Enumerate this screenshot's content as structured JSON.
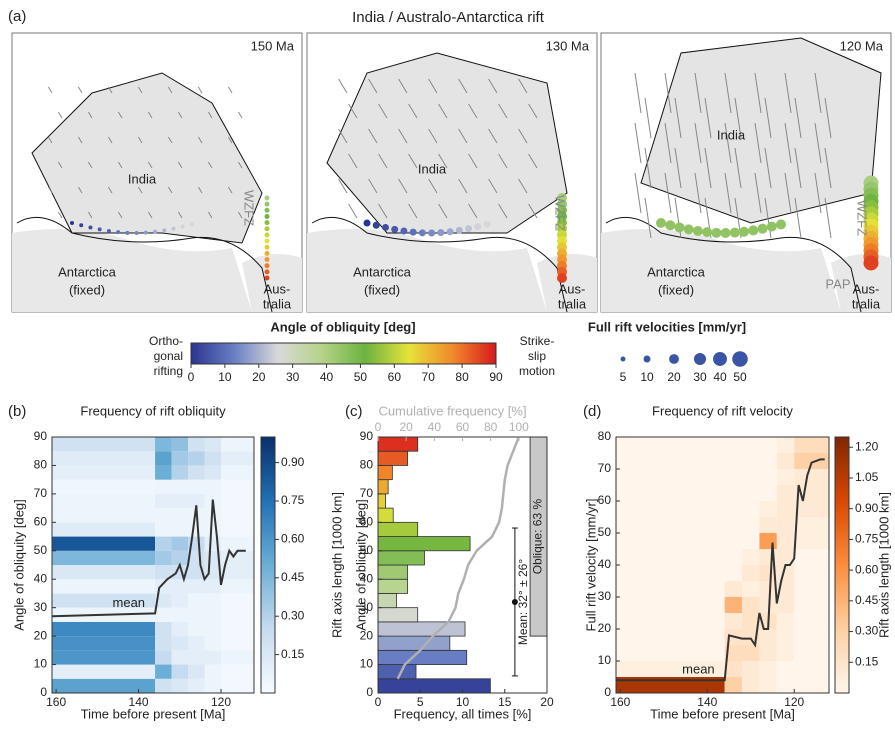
{
  "figure_label": "(a)",
  "title": "India / Australo-Antarctica rift",
  "maps": [
    {
      "age": "150 Ma",
      "india": "India",
      "fault": "WZFZ",
      "antarctica": "Antarctica",
      "fixed": "(fixed)",
      "australia_1": "Aus-",
      "australia_2": "tralia"
    },
    {
      "age": "130 Ma",
      "india": "India",
      "fault": "WZFZ",
      "antarctica": "Antarctica",
      "fixed": "(fixed)",
      "australia_1": "Aus-",
      "australia_2": "tralia"
    },
    {
      "age": "120 Ma",
      "india": "India",
      "fault": "WZFZ",
      "pap": "PAP",
      "antarctica": "Antarctica",
      "fixed": "(fixed)",
      "australia_1": "Aus-",
      "australia_2": "tralia"
    }
  ],
  "legend": {
    "obliquity_title": "Angle of obliquity [deg]",
    "left_label": [
      "Ortho-",
      "gonal",
      "rifting"
    ],
    "right_label": [
      "Strike-",
      "slip",
      "motion"
    ],
    "lim": [
      0,
      90
    ],
    "ticks": [
      0,
      10,
      20,
      30,
      40,
      50,
      60,
      70,
      80,
      90
    ],
    "colors": [
      "#2a3590",
      "#6a7fc4",
      "#d9d9d9",
      "#b5d38a",
      "#6cb33f",
      "#e5e33a",
      "#f08a2a",
      "#d7191c"
    ],
    "velocity_title": "Full rift velocities [mm/yr]",
    "velocity_sizes": [
      5,
      10,
      20,
      30,
      40,
      50
    ],
    "velocity_color": "#3b55a6"
  },
  "chart_data": [
    {
      "type": "heatmap",
      "panel_label": "(b)",
      "title": "Frequency of rift obliquity",
      "x_label": "Time before present [Ma]",
      "y_label": "Angle of obliquity [deg]",
      "xlim": [
        161,
        112
      ],
      "xticks": [
        160,
        140,
        120
      ],
      "ylim": [
        0,
        90
      ],
      "yticks": [
        0,
        10,
        20,
        30,
        40,
        50,
        60,
        70,
        80,
        90
      ],
      "xbins": [
        161,
        136,
        132,
        128,
        124,
        120,
        112
      ],
      "ybins": [
        0,
        5,
        10,
        15,
        20,
        25,
        30,
        35,
        40,
        45,
        50,
        55,
        60,
        65,
        70,
        75,
        80,
        85,
        90
      ],
      "z": [
        [
          0.55,
          0.1,
          0.6,
          0.62,
          0.65,
          0.05,
          0.2,
          0.05,
          0.15,
          0.45,
          0.85,
          0.12,
          0.05,
          0.05,
          0.04,
          0.1,
          0.12,
          0.2
        ],
        [
          0.2,
          0.5,
          0.25,
          0.2,
          0.2,
          0.05,
          0.15,
          0.1,
          0.2,
          0.35,
          0.3,
          0.05,
          0.05,
          0.1,
          0.05,
          0.5,
          0.55,
          0.45
        ],
        [
          0.15,
          0.25,
          0.1,
          0.15,
          0.1,
          0.05,
          0.1,
          0.1,
          0.2,
          0.3,
          0.35,
          0.05,
          0.05,
          0.1,
          0.05,
          0.3,
          0.35,
          0.4
        ],
        [
          0.1,
          0.15,
          0.1,
          0.1,
          0.05,
          0.05,
          0.05,
          0.1,
          0.2,
          0.2,
          0.25,
          0.05,
          0.05,
          0.1,
          0.05,
          0.2,
          0.3,
          0.2
        ],
        [
          0.05,
          0.05,
          0.1,
          0.05,
          0.05,
          0.05,
          0.05,
          0.1,
          0.15,
          0.15,
          0.1,
          0.05,
          0.05,
          0.05,
          0.05,
          0.15,
          0.2,
          0.15
        ],
        [
          0.02,
          0.02,
          0.05,
          0.02,
          0.02,
          0.02,
          0.02,
          0.05,
          0.1,
          0.1,
          0.05,
          0.02,
          0.02,
          0.02,
          0.02,
          0.05,
          0.1,
          0.05
        ]
      ],
      "colorbar": {
        "label": "Rift axis length [1000 km]",
        "lim": [
          0,
          1.0
        ],
        "ticks": [
          0.15,
          {
            "value": 0.3,
            "label": "0.30"
          },
          0.45,
          {
            "value": 0.6,
            "label": "0.60"
          },
          0.75,
          {
            "value": 0.9,
            "label": "0.90"
          }
        ],
        "colors": [
          "#f7fbff",
          "#c6dbef",
          "#6baed6",
          "#2171b5",
          "#08306b"
        ]
      },
      "mean": {
        "name": "mean",
        "color": "#333333",
        "x": [
          161,
          136,
          135,
          133,
          131,
          130,
          129,
          128,
          127,
          126,
          125,
          124,
          123,
          122,
          121,
          120,
          119,
          118,
          117,
          116,
          114
        ],
        "values": [
          27,
          28,
          37,
          40,
          42,
          45,
          40,
          45,
          55,
          66,
          45,
          40,
          42,
          68,
          55,
          38,
          45,
          50,
          48,
          50,
          50
        ]
      }
    },
    {
      "type": "histogram",
      "panel_label": "(c)",
      "x_label": "Frequency, all times [%]",
      "y_label": "Angle of obliquity [deg]",
      "xlim": [
        0,
        20
      ],
      "xticks": [
        0,
        5,
        10,
        15,
        20
      ],
      "ylim": [
        0,
        90
      ],
      "yticks": [
        0,
        10,
        20,
        30,
        40,
        50,
        60,
        70,
        80,
        90
      ],
      "bins": [
        0,
        5,
        10,
        15,
        20,
        25,
        30,
        35,
        40,
        45,
        50,
        55,
        60,
        65,
        70,
        75,
        80,
        85,
        90
      ],
      "values": [
        13.3,
        4.5,
        10.5,
        8.5,
        10.3,
        4.7,
        2.2,
        3.5,
        3.5,
        5.5,
        10.9,
        4.7,
        1.8,
        0.9,
        1.2,
        1.7,
        3.5,
        4.7
      ],
      "cumulative": {
        "title": "Cumulative frequency [%]",
        "color": "#b0b0b0",
        "x2lim": [
          0,
          120
        ],
        "x2ticks": [
          0,
          20,
          40,
          60,
          80,
          100
        ],
        "values": [
          14,
          19,
          30,
          39,
          50,
          55,
          57,
          61,
          64,
          70,
          81,
          86,
          88,
          89,
          90,
          92,
          96,
          100
        ]
      },
      "mean": {
        "value": 32,
        "error": 26,
        "label": "Mean: 32° ± 26°"
      },
      "oblique": {
        "label": "Oblique: 63 %",
        "range": [
          20,
          90
        ]
      }
    },
    {
      "type": "heatmap",
      "panel_label": "(d)",
      "title": "Frequency of rift velocity",
      "x_label": "Time before present [Ma]",
      "y_label": "Full rift velocity [mm/yr]",
      "xlim": [
        161,
        112
      ],
      "xticks": [
        160,
        140,
        120
      ],
      "ylim": [
        0,
        80
      ],
      "yticks": [
        0,
        10,
        20,
        30,
        40,
        50,
        60,
        70,
        80
      ],
      "xbins": [
        161,
        136,
        132,
        128,
        124,
        120,
        112
      ],
      "ybins": [
        0,
        5,
        10,
        15,
        20,
        25,
        30,
        35,
        40,
        45,
        50,
        55,
        60,
        65,
        70,
        75,
        80
      ],
      "z": [
        [
          1.1,
          0.05,
          0,
          0,
          0,
          0,
          0,
          0,
          0,
          0,
          0,
          0,
          0,
          0,
          0,
          0
        ],
        [
          0.3,
          0.15,
          0.2,
          0.15,
          0.1,
          0.45,
          0.1,
          0,
          0,
          0,
          0,
          0,
          0,
          0,
          0,
          0
        ],
        [
          0.1,
          0.1,
          0.2,
          0.15,
          0.15,
          0.15,
          0.05,
          0.1,
          0.05,
          0,
          0,
          0,
          0,
          0,
          0,
          0
        ],
        [
          0.05,
          0.05,
          0.1,
          0.1,
          0.15,
          0.1,
          0.1,
          0.15,
          0.1,
          0.55,
          0.1,
          0.05,
          0,
          0,
          0,
          0
        ],
        [
          0,
          0,
          0.05,
          0.05,
          0.05,
          0.1,
          0.1,
          0.1,
          0.1,
          0.1,
          0.1,
          0.1,
          0.1,
          0.05,
          0.1,
          0.05
        ],
        [
          0,
          0,
          0,
          0,
          0,
          0,
          0,
          0,
          0,
          0.05,
          0.05,
          0.1,
          0.1,
          0.1,
          0.3,
          0.2
        ]
      ],
      "colorbar": {
        "label": "Rift axis length [1000 km]",
        "lim": [
          0,
          1.25
        ],
        "ticks": [
          0.15,
          {
            "value": 0.3,
            "label": "0.30"
          },
          0.45,
          {
            "value": 0.6,
            "label": "0.60"
          },
          0.75,
          {
            "value": 0.9,
            "label": "0.90"
          },
          1.05,
          {
            "value": 1.2,
            "label": "1.20"
          }
        ],
        "colors": [
          "#fff5eb",
          "#fdd0a2",
          "#fd8d3c",
          "#d94801",
          "#7f2704"
        ]
      },
      "mean": {
        "name": "mean",
        "color": "#333333",
        "x": [
          161,
          136,
          135,
          132,
          130,
          129,
          128,
          127,
          126,
          125,
          124,
          123,
          122,
          121,
          120,
          119,
          118,
          117,
          116,
          114,
          113
        ],
        "values": [
          4,
          4,
          18,
          17,
          17,
          15,
          25,
          20,
          20,
          47,
          28,
          35,
          40,
          40,
          42,
          65,
          60,
          68,
          72,
          73,
          73
        ]
      }
    }
  ]
}
